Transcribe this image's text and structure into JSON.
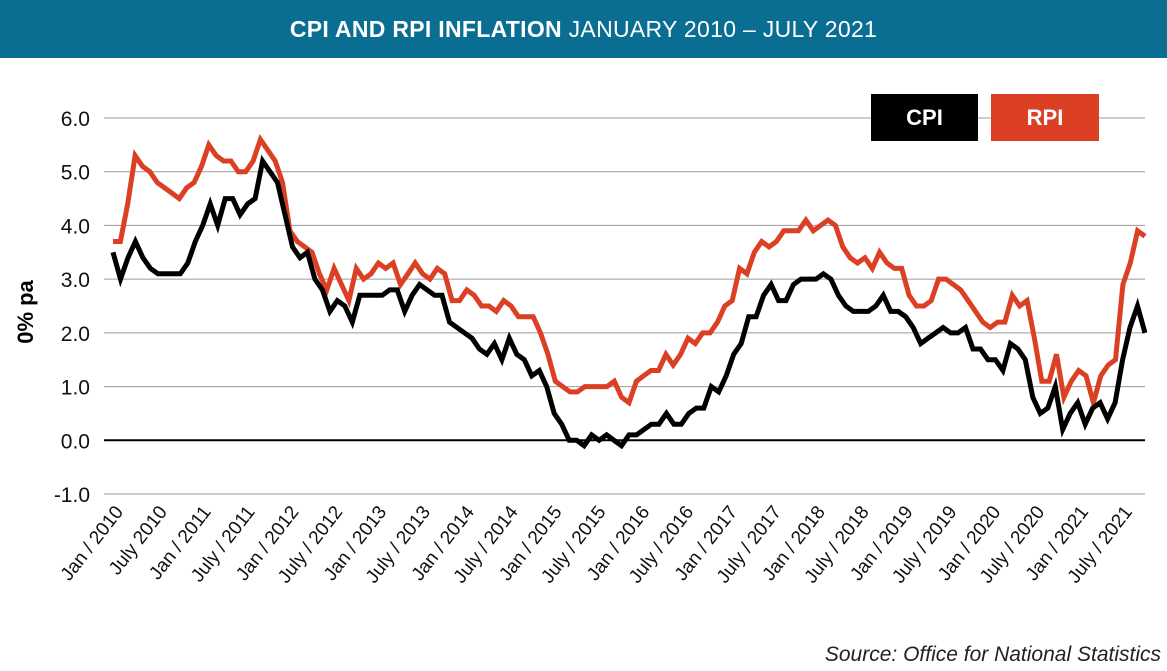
{
  "header": {
    "title_bold": "CPI  AND RPI INFLATION",
    "title_light": "JANUARY 2010 – JULY 2021"
  },
  "source": "Source: Office for National Statistics",
  "colors": {
    "header_bg": "#0a6d92",
    "cpi": "#000000",
    "rpi": "#db4025",
    "grid": "#9a9a9a"
  },
  "chart_data": {
    "type": "line",
    "title": "CPI  AND RPI INFLATION JANUARY 2010 – JULY 2021",
    "ylabel": "0% pa",
    "xlabel": "",
    "ylim": [
      -1.0,
      6.0
    ],
    "y_ticks": [
      "6.0",
      "5.0",
      "4.0",
      "3.0",
      "2.0",
      "1.0",
      "0.0",
      "-1.0"
    ],
    "x_start": "Jan 2010",
    "x_ticks": [
      "Jan / 2010",
      "July 2010",
      "Jan / 2011",
      "July / 2011",
      "Jan / 2012",
      "July / 2012",
      "Jan / 2013",
      "July / 2013",
      "Jan / 2014",
      "July / 2014",
      "Jan / 2015",
      "July / 2015",
      "Jan / 2016",
      "July / 2016",
      "Jan / 2017",
      "July / 2017",
      "Jan / 2018",
      "July / 2018",
      "Jan / 2019",
      "July / 2019",
      "Jan / 2020",
      "July / 2020",
      "Jan / 2021",
      "July / 2021"
    ],
    "grid": true,
    "legend": "top-right",
    "series": [
      {
        "name": "CPI",
        "values": [
          3.5,
          3.0,
          3.4,
          3.7,
          3.4,
          3.2,
          3.1,
          3.1,
          3.1,
          3.1,
          3.3,
          3.7,
          4.0,
          4.4,
          4.0,
          4.5,
          4.5,
          4.2,
          4.4,
          4.5,
          5.2,
          5.0,
          4.8,
          4.2,
          3.6,
          3.4,
          3.5,
          3.0,
          2.8,
          2.4,
          2.6,
          2.5,
          2.2,
          2.7,
          2.7,
          2.7,
          2.7,
          2.8,
          2.8,
          2.4,
          2.7,
          2.9,
          2.8,
          2.7,
          2.7,
          2.2,
          2.1,
          2.0,
          1.9,
          1.7,
          1.6,
          1.8,
          1.5,
          1.9,
          1.6,
          1.5,
          1.2,
          1.3,
          1.0,
          0.5,
          0.3,
          0.0,
          0.0,
          -0.1,
          0.1,
          0.0,
          0.1,
          0.0,
          -0.1,
          0.1,
          0.1,
          0.2,
          0.3,
          0.3,
          0.5,
          0.3,
          0.3,
          0.5,
          0.6,
          0.6,
          1.0,
          0.9,
          1.2,
          1.6,
          1.8,
          2.3,
          2.3,
          2.7,
          2.9,
          2.6,
          2.6,
          2.9,
          3.0,
          3.0,
          3.0,
          3.1,
          3.0,
          2.7,
          2.5,
          2.4,
          2.4,
          2.4,
          2.5,
          2.7,
          2.4,
          2.4,
          2.3,
          2.1,
          1.8,
          1.9,
          2.0,
          2.1,
          2.0,
          2.0,
          2.1,
          1.7,
          1.7,
          1.5,
          1.5,
          1.3,
          1.8,
          1.7,
          1.5,
          0.8,
          0.5,
          0.6,
          1.0,
          0.2,
          0.5,
          0.7,
          0.3,
          0.6,
          0.7,
          0.4,
          0.7,
          1.5,
          2.1,
          2.5,
          2.0
        ]
      },
      {
        "name": "RPI",
        "values": [
          3.7,
          3.7,
          4.4,
          5.3,
          5.1,
          5.0,
          4.8,
          4.7,
          4.6,
          4.5,
          4.7,
          4.8,
          5.1,
          5.5,
          5.3,
          5.2,
          5.2,
          5.0,
          5.0,
          5.2,
          5.6,
          5.4,
          5.2,
          4.8,
          3.9,
          3.7,
          3.6,
          3.5,
          3.1,
          2.8,
          3.2,
          2.9,
          2.6,
          3.2,
          3.0,
          3.1,
          3.3,
          3.2,
          3.3,
          2.9,
          3.1,
          3.3,
          3.1,
          3.0,
          3.2,
          3.1,
          2.6,
          2.6,
          2.8,
          2.7,
          2.5,
          2.5,
          2.4,
          2.6,
          2.5,
          2.3,
          2.3,
          2.3,
          2.0,
          1.6,
          1.1,
          1.0,
          0.9,
          0.9,
          1.0,
          1.0,
          1.0,
          1.0,
          1.1,
          0.8,
          0.7,
          1.1,
          1.2,
          1.3,
          1.3,
          1.6,
          1.4,
          1.6,
          1.9,
          1.8,
          2.0,
          2.0,
          2.2,
          2.5,
          2.6,
          3.2,
          3.1,
          3.5,
          3.7,
          3.6,
          3.7,
          3.9,
          3.9,
          3.9,
          4.1,
          3.9,
          4.0,
          4.1,
          4.0,
          3.6,
          3.4,
          3.3,
          3.4,
          3.2,
          3.5,
          3.3,
          3.2,
          3.2,
          2.7,
          2.5,
          2.5,
          2.6,
          3.0,
          3.0,
          2.9,
          2.8,
          2.6,
          2.4,
          2.2,
          2.1,
          2.2,
          2.2,
          2.7,
          2.5,
          2.6,
          1.9,
          1.1,
          1.1,
          1.6,
          0.8,
          1.1,
          1.3,
          1.2,
          0.7,
          1.2,
          1.4,
          1.5,
          2.9,
          3.3,
          3.9,
          3.8
        ]
      }
    ]
  }
}
